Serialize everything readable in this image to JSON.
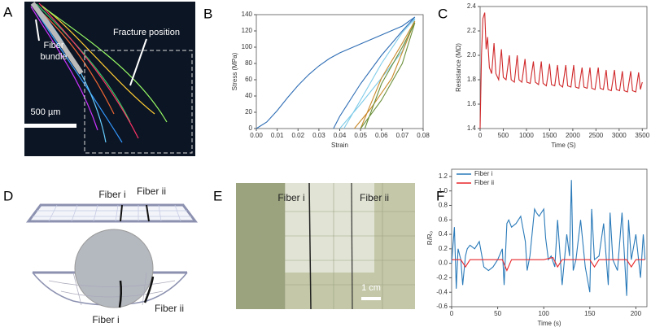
{
  "panel_letters": [
    "A",
    "B",
    "C",
    "D",
    "E",
    "F"
  ],
  "panel_a": {
    "fiber_bundle": [
      "Fiber",
      "bundle"
    ],
    "fracture_position": "Fracture position",
    "scale_bar": "500 µm"
  },
  "panel_d": {
    "top_labels": [
      "Fiber i",
      "Fiber ii"
    ],
    "bottom_labels": [
      "Fiber i",
      "Fiber ii"
    ]
  },
  "panel_e": {
    "labels": [
      "Fiber i",
      "Fiber ii"
    ],
    "scale_bar": "1 cm"
  },
  "chart_data": [
    {
      "type": "line",
      "xlabel": "Strain",
      "ylabel": "Stress (MPa)",
      "xlim": [
        0,
        0.08
      ],
      "ylim": [
        0,
        140
      ],
      "xticks": [
        {
          "value": 0,
          "label": "0.00"
        },
        {
          "value": 0.01,
          "label": "0.01"
        },
        {
          "value": 0.02,
          "label": "0.02"
        },
        {
          "value": 0.03,
          "label": "0.03"
        },
        {
          "value": 0.04,
          "label": "0.04"
        },
        {
          "value": 0.05,
          "label": "0.05"
        },
        {
          "value": 0.06,
          "label": "0.06"
        },
        {
          "value": 0.07,
          "label": "0.07"
        },
        {
          "value": 0.08,
          "label": "0.08"
        }
      ],
      "yticks": [
        0,
        20,
        40,
        60,
        80,
        100,
        120,
        140
      ],
      "series": [
        {
          "color": "#2e6db4",
          "x": [
            0,
            0.005,
            0.01,
            0.015,
            0.02,
            0.025,
            0.03,
            0.035,
            0.04,
            0.05,
            0.06,
            0.07,
            0.076,
            0.07,
            0.06,
            0.05,
            0.045,
            0.04,
            0.037
          ],
          "values": [
            0,
            8,
            22,
            38,
            53,
            66,
            77,
            86,
            93,
            104,
            115,
            126,
            137,
            120,
            90,
            55,
            35,
            15,
            0
          ]
        },
        {
          "color": "#7ecbe8",
          "x": [
            0.04,
            0.05,
            0.06,
            0.07,
            0.076,
            0.07,
            0.06,
            0.05,
            0.042
          ],
          "values": [
            0,
            30,
            62,
            95,
            135,
            118,
            80,
            35,
            0
          ]
        },
        {
          "color": "#c98a2b",
          "x": [
            0.047,
            0.055,
            0.065,
            0.076,
            0.07,
            0.06,
            0.05
          ],
          "values": [
            0,
            25,
            62,
            132,
            105,
            62,
            0
          ]
        },
        {
          "color": "#6a8f3a",
          "x": [
            0.05,
            0.06,
            0.07,
            0.076,
            0.07,
            0.06,
            0.052
          ],
          "values": [
            0,
            35,
            80,
            130,
            100,
            55,
            0
          ]
        }
      ]
    },
    {
      "type": "line",
      "xlabel": "Time (S)",
      "ylabel": "Resistance (MΩ)",
      "xlim": [
        0,
        3600
      ],
      "ylim": [
        1.4,
        2.4
      ],
      "xticks": [
        0,
        500,
        1000,
        1500,
        2000,
        2500,
        3000,
        3500
      ],
      "yticks": [
        1.4,
        1.6,
        1.8,
        {
          "value": 2,
          "label": "2.0"
        },
        2.2,
        2.4
      ],
      "series": [
        {
          "color": "#d0282a",
          "x": [
            0,
            30,
            60,
            100,
            130,
            160,
            200,
            250,
            300,
            340,
            400,
            460,
            500,
            560,
            630,
            670,
            740,
            800,
            840,
            900,
            970,
            1010,
            1080,
            1150,
            1190,
            1260,
            1320,
            1360,
            1430,
            1500,
            1540,
            1610,
            1670,
            1710,
            1780,
            1850,
            1890,
            1960,
            2020,
            2060,
            2130,
            2200,
            2240,
            2310,
            2370,
            2410,
            2480,
            2550,
            2590,
            2660,
            2720,
            2760,
            2830,
            2900,
            2940,
            3010,
            3070,
            3110,
            3180,
            3250,
            3290,
            3360,
            3420,
            3460,
            3500
          ],
          "values": [
            1.4,
            2.0,
            2.3,
            2.35,
            2.05,
            2.15,
            1.9,
            1.85,
            2.1,
            1.85,
            1.8,
            2.05,
            1.82,
            1.8,
            2.0,
            1.8,
            1.78,
            2.0,
            1.8,
            1.78,
            1.97,
            1.78,
            1.77,
            1.95,
            1.78,
            1.76,
            1.95,
            1.77,
            1.75,
            1.93,
            1.76,
            1.75,
            1.92,
            1.76,
            1.74,
            1.92,
            1.75,
            1.74,
            1.92,
            1.74,
            1.73,
            1.9,
            1.74,
            1.73,
            1.9,
            1.73,
            1.72,
            1.9,
            1.73,
            1.72,
            1.88,
            1.72,
            1.71,
            1.88,
            1.72,
            1.71,
            1.87,
            1.71,
            1.7,
            1.87,
            1.71,
            1.7,
            1.86,
            1.72,
            1.78
          ]
        }
      ]
    },
    {
      "type": "line",
      "xlabel": "Time (s)",
      "ylabel": "R/R₀",
      "legend": "upper left",
      "xlim": [
        0,
        212
      ],
      "ylim": [
        -0.6,
        1.3
      ],
      "xticks": [
        0,
        50,
        100,
        150,
        200
      ],
      "yticks": [
        -0.6,
        -0.4,
        -0.2,
        {
          "value": 0,
          "label": "0.0"
        },
        0.2,
        0.4,
        0.6,
        0.8,
        {
          "value": 1,
          "label": "1.0"
        },
        1.2
      ],
      "series": [
        {
          "name": "Fiber i",
          "color": "#2a7ab9",
          "x": [
            0,
            3,
            5,
            7,
            10,
            12,
            15,
            17,
            20,
            25,
            30,
            35,
            40,
            45,
            50,
            55,
            57,
            60,
            62,
            65,
            70,
            75,
            80,
            82,
            85,
            90,
            92,
            95,
            100,
            102,
            105,
            108,
            112,
            115,
            120,
            125,
            128,
            130,
            132,
            135,
            140,
            145,
            150,
            152,
            155,
            160,
            165,
            170,
            172,
            175,
            180,
            185,
            190,
            192,
            195,
            200,
            205,
            208,
            210
          ],
          "values": [
            0,
            0.5,
            -0.35,
            0.2,
            0.05,
            -0.3,
            0.1,
            0.2,
            0.25,
            0.2,
            0.3,
            -0.05,
            -0.1,
            -0.05,
            0.05,
            0.2,
            -0.3,
            0.55,
            0.6,
            0.5,
            0.55,
            0.65,
            0.3,
            -0.1,
            0.1,
            0.75,
            0.7,
            0.65,
            0.75,
            0.35,
            0.05,
            0.1,
            -0.05,
            0.6,
            -0.3,
            0.4,
            0.1,
            1.15,
            -0.1,
            0.05,
            0.6,
            -0.05,
            -0.4,
            0.75,
            0.05,
            0.1,
            0.55,
            -0.3,
            0.7,
            0.05,
            -0.1,
            0.7,
            -0.45,
            0.6,
            0.05,
            0.4,
            -0.2,
            0.4,
            0.05
          ]
        },
        {
          "name": "Fiber ii",
          "color": "#e8262a",
          "x": [
            0,
            10,
            15,
            20,
            40,
            55,
            60,
            65,
            80,
            100,
            110,
            115,
            120,
            130,
            140,
            150,
            155,
            160,
            180,
            190,
            195,
            200,
            210
          ],
          "values": [
            0.05,
            0.05,
            -0.05,
            0.05,
            0.05,
            0.05,
            -0.1,
            0.05,
            0.05,
            0.05,
            0.08,
            -0.05,
            0.05,
            0.05,
            0.05,
            0.05,
            -0.05,
            0.05,
            0.05,
            0.05,
            -0.05,
            0.05,
            0.05
          ]
        }
      ]
    }
  ]
}
